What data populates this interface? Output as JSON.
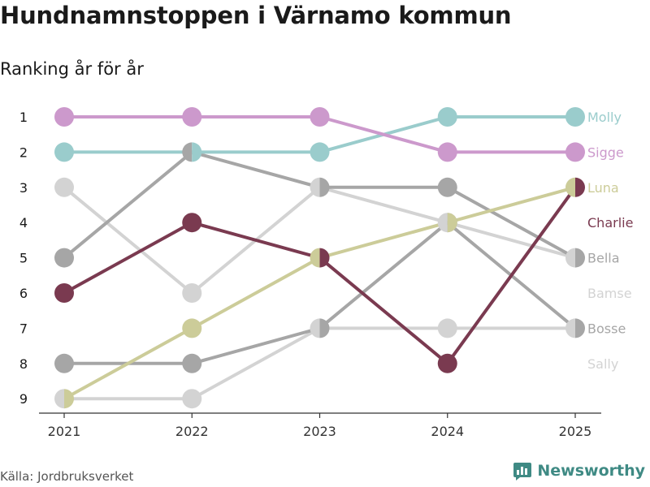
{
  "title": "Hundnamnstoppen i Värnamo kommun",
  "subtitle": "Ranking år för år",
  "source": "Källa: Jordbruksverket",
  "brand": {
    "name": "Newsworthy",
    "icon": "newsworthy-logo-icon",
    "color": "#3f8a84"
  },
  "chart_data": {
    "type": "line",
    "subtype": "bump",
    "x": [
      "2021",
      "2022",
      "2023",
      "2024",
      "2025"
    ],
    "y_ticks": [
      "1",
      "2",
      "3",
      "4",
      "5",
      "6",
      "7",
      "8",
      "9"
    ],
    "ylim": [
      1,
      9
    ],
    "y_inverted": true,
    "grid": false,
    "series": [
      {
        "name": "Sally",
        "color": "#d3d3d3",
        "ranks": [
          3,
          6,
          3,
          4,
          5
        ],
        "label_rank": 8
      },
      {
        "name": "Bamse",
        "color": "#d3d3d3",
        "ranks": [
          9,
          9,
          7,
          7,
          7
        ],
        "label_rank": 6
      },
      {
        "name": "Bosse",
        "color": "#a6a6a6",
        "ranks": [
          8,
          8,
          7,
          4,
          7
        ],
        "label_rank": 7
      },
      {
        "name": "Bella",
        "color": "#a6a6a6",
        "ranks": [
          5,
          2,
          3,
          3,
          5
        ],
        "label_rank": 5
      },
      {
        "name": "Luna",
        "color": "#cccc99",
        "ranks": [
          9,
          7,
          5,
          4,
          3
        ],
        "label_rank": 3
      },
      {
        "name": "Charlie",
        "color": "#7a3a50",
        "ranks": [
          6,
          4,
          5,
          8,
          3
        ],
        "label_rank": 4
      },
      {
        "name": "Molly",
        "color": "#9acccc",
        "ranks": [
          2,
          2,
          2,
          1,
          1
        ],
        "label_rank": 1
      },
      {
        "name": "Sigge",
        "color": "#cc99cc",
        "ranks": [
          1,
          1,
          1,
          2,
          2
        ],
        "label_rank": 2
      }
    ]
  }
}
